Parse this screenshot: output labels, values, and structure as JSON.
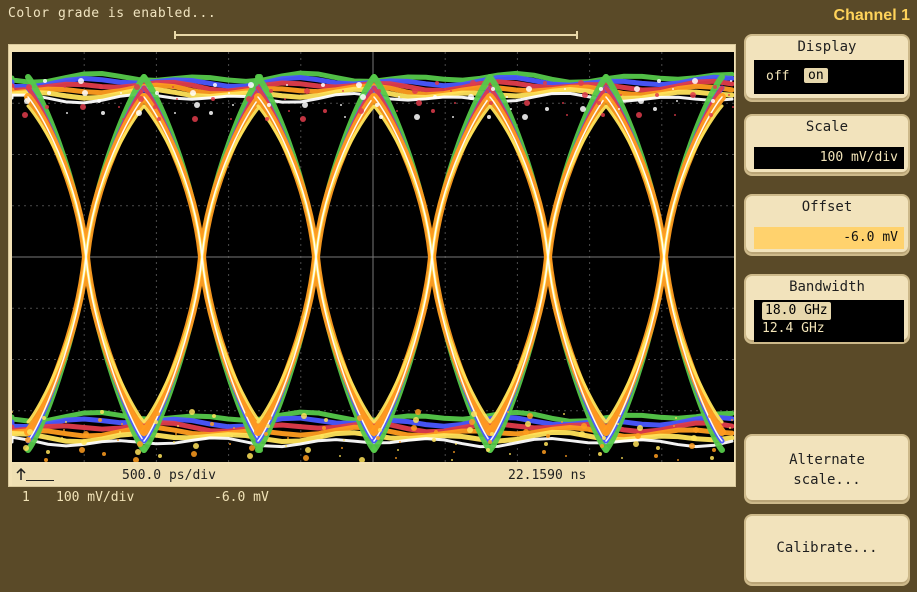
{
  "status": {
    "message": "Color grade is enabled..."
  },
  "graph": {
    "footer": {
      "time_scale": "500.0 ps/div",
      "time_position": "22.1590 ns"
    },
    "colors": {
      "background": "#000000",
      "grid": "#4b4b4b",
      "green": "#55c84a",
      "blue": "#4a57ff",
      "red": "#e03c4b",
      "orange": "#ff9c1f",
      "yellow": "#ffe35a",
      "white": "#ffffff"
    }
  },
  "channel_readout": {
    "channel": "1",
    "scale": "100 mV/div",
    "offset": "-6.0 mV"
  },
  "panel": {
    "title": "Channel 1",
    "display": {
      "label": "Display",
      "off": "off",
      "on": "on",
      "selected": "on"
    },
    "scale": {
      "label": "Scale",
      "value": "100 mV/div"
    },
    "offset": {
      "label": "Offset",
      "value": "-6.0 mV"
    },
    "bandwidth": {
      "label": "Bandwidth",
      "selected": "18.0 GHz",
      "alternate": "12.4 GHz"
    },
    "alternate_scale": {
      "label": "Alternate\nscale..."
    },
    "calibrate": {
      "label": "Calibrate..."
    }
  }
}
